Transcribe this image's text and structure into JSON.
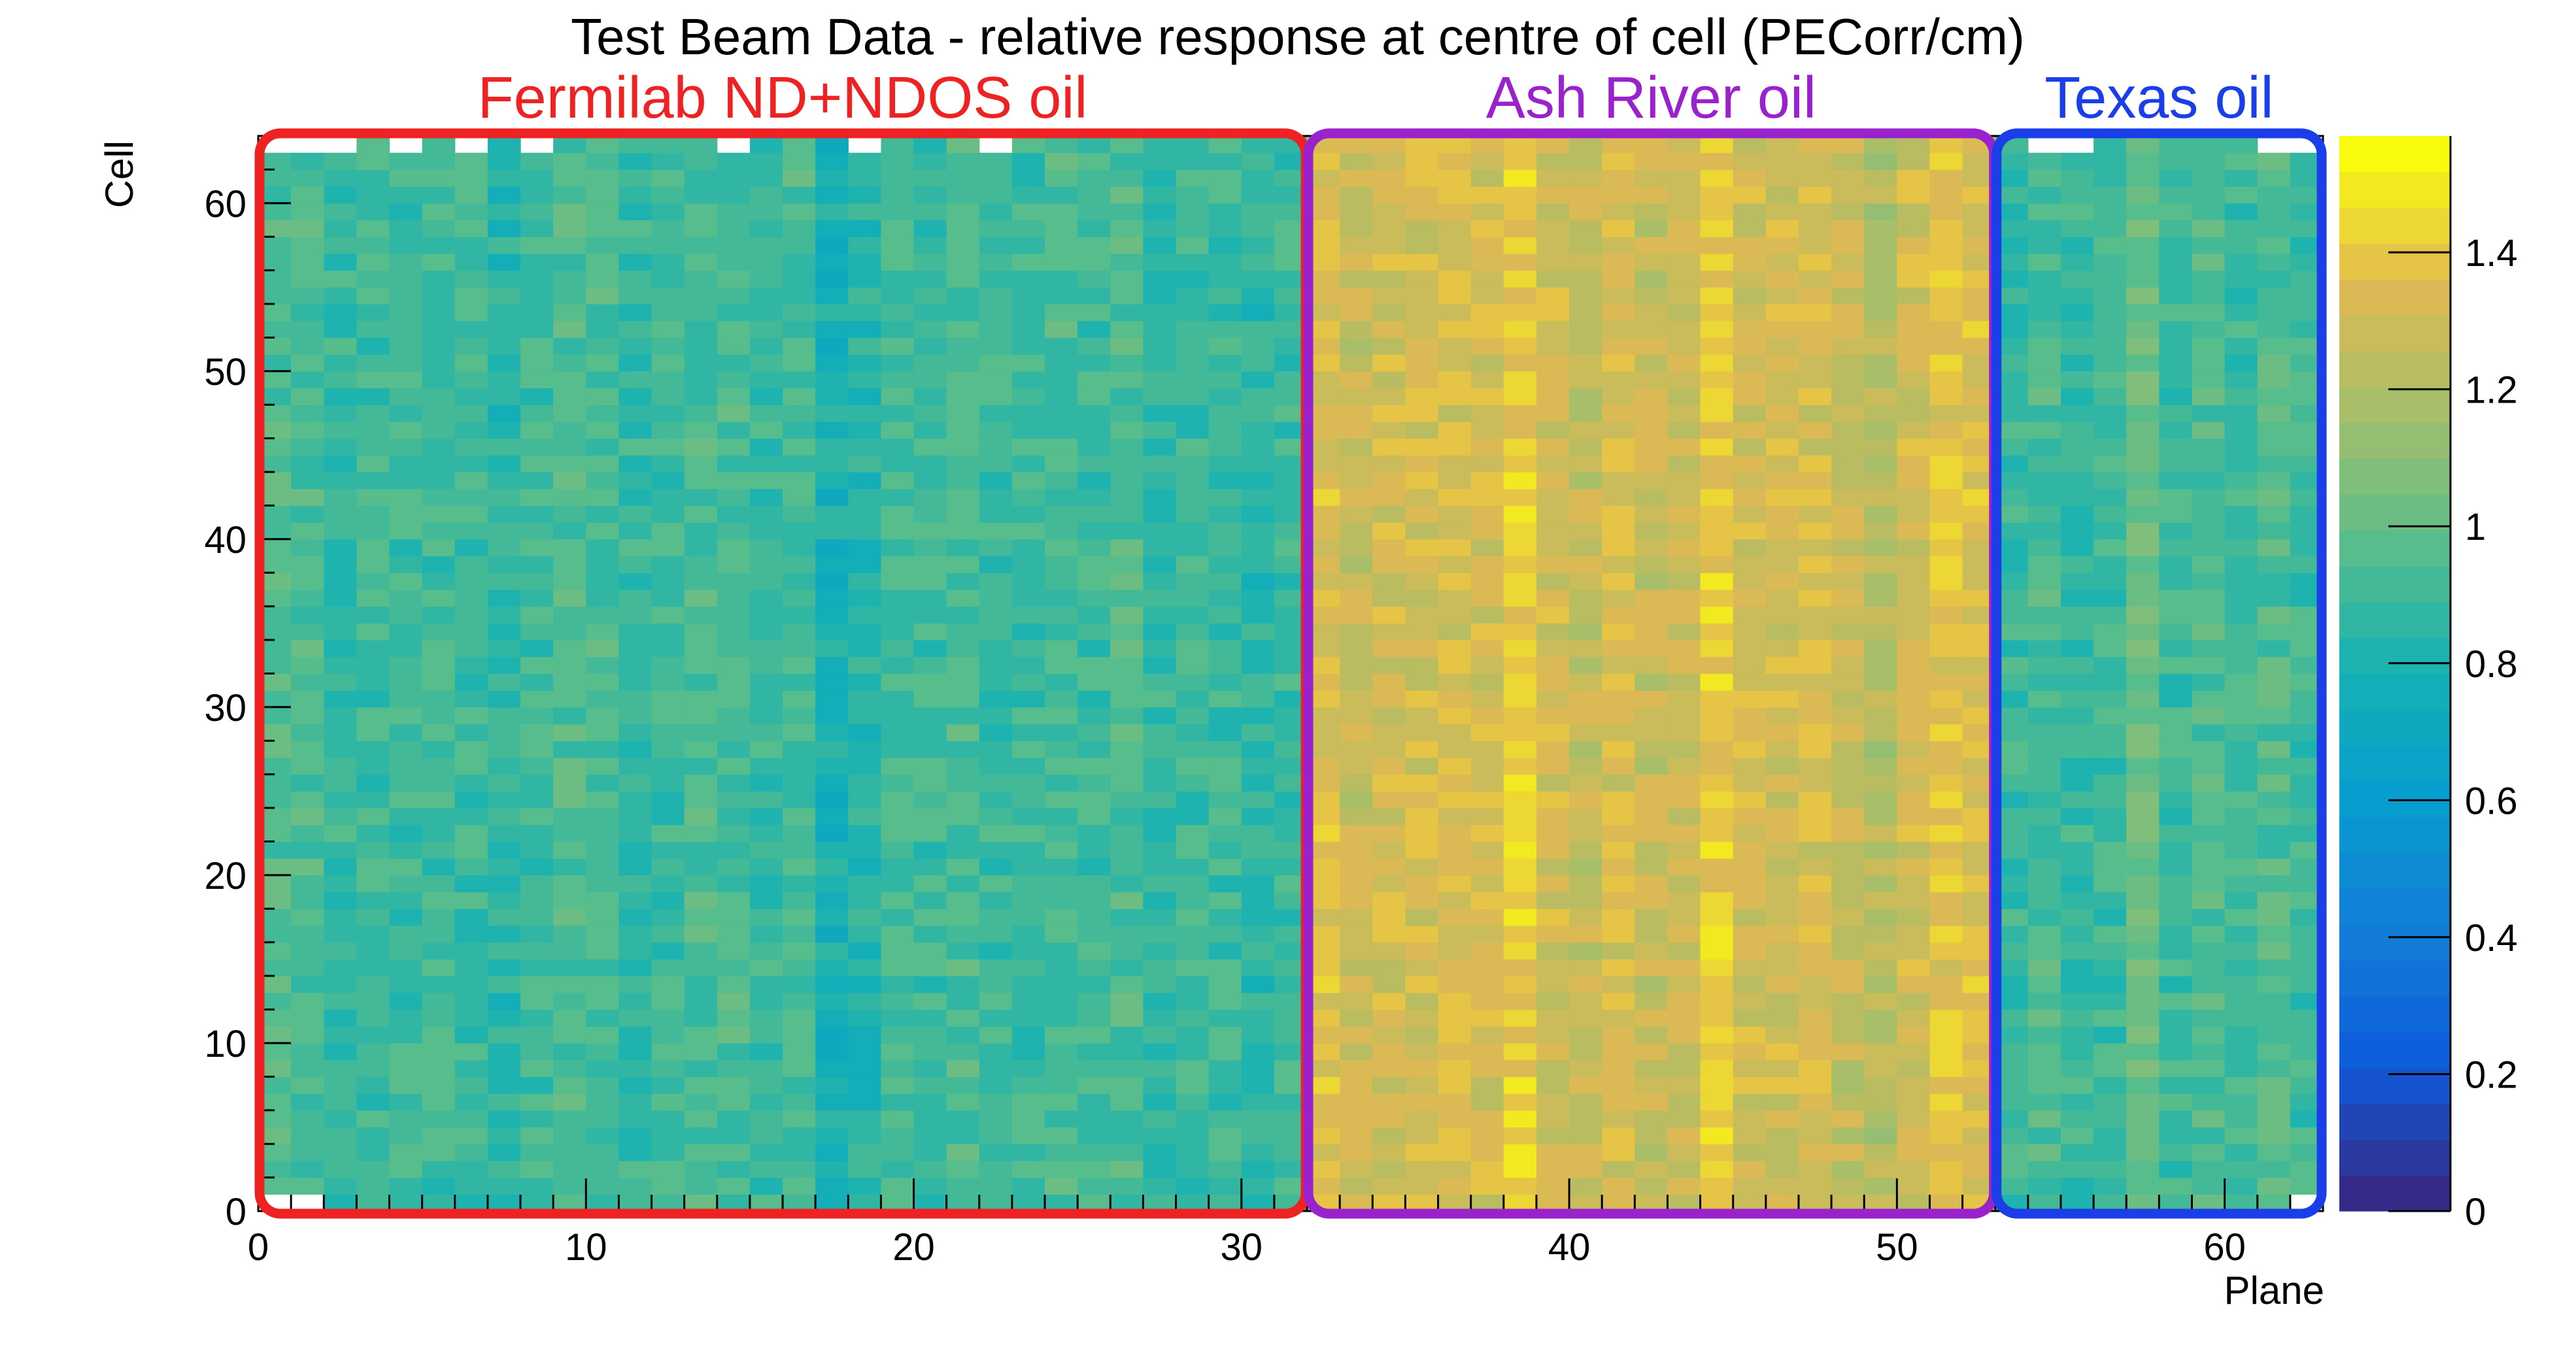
{
  "chart_data": {
    "type": "heatmap",
    "title": "Test Beam Data - relative response at centre of cell (PECorr/cm)",
    "xlabel": "Plane",
    "ylabel": "Cell",
    "xlim": [
      0,
      63
    ],
    "ylim": [
      0,
      64
    ],
    "zlim": [
      0,
      1.57
    ],
    "x_ticks": [
      "0",
      "10",
      "20",
      "30",
      "40",
      "50",
      "60"
    ],
    "y_ticks": [
      "0",
      "10",
      "20",
      "30",
      "40",
      "50",
      "60"
    ],
    "z_ticks": [
      "0",
      "0.2",
      "0.4",
      "0.6",
      "0.8",
      "1",
      "1.2",
      "1.4"
    ],
    "grid": false,
    "missing_cells": [
      {
        "plane": 0,
        "cells": [
          0,
          63
        ]
      },
      {
        "plane": 1,
        "cells": [
          0,
          63
        ]
      },
      {
        "plane": 2,
        "cells": [
          63
        ]
      },
      {
        "plane": 4,
        "cells": [
          63
        ]
      },
      {
        "plane": 6,
        "cells": [
          63
        ]
      },
      {
        "plane": 8,
        "cells": [
          63
        ]
      },
      {
        "plane": 14,
        "cells": [
          63
        ]
      },
      {
        "plane": 18,
        "cells": [
          63
        ]
      },
      {
        "plane": 22,
        "cells": [
          63
        ]
      },
      {
        "plane": 54,
        "cells": [
          63
        ]
      },
      {
        "plane": 55,
        "cells": [
          63
        ]
      },
      {
        "plane": 61,
        "cells": [
          63
        ]
      },
      {
        "plane": 62,
        "cells": [
          0,
          63
        ]
      }
    ],
    "regions": [
      {
        "label": "Fermilab ND+NDOS oil",
        "plane_range": [
          0,
          32
        ],
        "color": "#ee2222",
        "mean_response": 0.9
      },
      {
        "label": "Ash River oil",
        "plane_range": [
          32,
          53
        ],
        "color": "#9a22cc",
        "mean_response": 1.3
      },
      {
        "label": "Texas oil",
        "plane_range": [
          53,
          63
        ],
        "color": "#1a3ee8",
        "mean_response": 0.93
      }
    ],
    "plane_means": [
      0.95,
      0.93,
      0.87,
      0.9,
      0.9,
      0.91,
      0.9,
      0.86,
      0.9,
      0.93,
      0.92,
      0.88,
      0.91,
      0.93,
      0.92,
      0.88,
      0.92,
      0.78,
      0.84,
      0.92,
      0.9,
      0.93,
      0.89,
      0.9,
      0.92,
      0.9,
      0.94,
      0.87,
      0.89,
      0.9,
      0.86,
      0.9,
      1.34,
      1.28,
      1.3,
      1.32,
      1.33,
      1.31,
      1.4,
      1.3,
      1.25,
      1.33,
      1.27,
      1.28,
      1.42,
      1.3,
      1.3,
      1.33,
      1.27,
      1.22,
      1.3,
      1.38,
      1.34,
      0.88,
      0.92,
      0.87,
      0.9,
      1.02,
      0.9,
      0.95,
      0.91,
      0.96,
      0.9
    ]
  }
}
